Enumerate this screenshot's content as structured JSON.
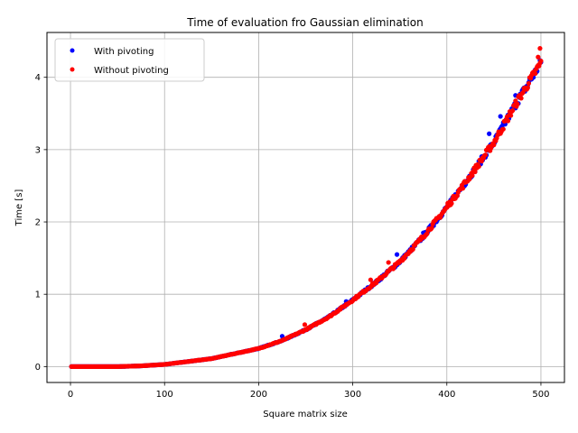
{
  "chart_data": {
    "type": "scatter",
    "title": "Time of evaluation fro Gaussian elimination",
    "xlabel": "Square matrix size",
    "ylabel": "Time [s]",
    "xlim": [
      -25,
      525
    ],
    "ylim": [
      -0.22,
      4.62
    ],
    "x_ticks": [
      0,
      100,
      200,
      300,
      400,
      500
    ],
    "x_tick_labels": [
      "0",
      "100",
      "200",
      "300",
      "400",
      "500"
    ],
    "y_ticks": [
      0,
      1,
      2,
      3,
      4
    ],
    "y_tick_labels": [
      "0",
      "1",
      "2",
      "3",
      "4"
    ],
    "grid": true,
    "legend_position": "top-left",
    "model": {
      "description_hidden": true,
      "a": 3.4e-08
    },
    "series": [
      {
        "name": "With pivoting",
        "color": "#0000ff",
        "x": [
          0,
          25,
          50,
          75,
          100,
          125,
          150,
          175,
          200,
          225,
          250,
          275,
          300,
          325,
          350,
          375,
          400,
          425,
          450,
          475,
          500
        ],
        "y": [
          0.0,
          0.0,
          0.0,
          0.01,
          0.03,
          0.07,
          0.11,
          0.18,
          0.25,
          0.36,
          0.51,
          0.69,
          0.92,
          1.17,
          1.45,
          1.8,
          2.2,
          2.64,
          3.1,
          3.67,
          4.2
        ],
        "outliers": [
          [
            225,
            0.42
          ],
          [
            293,
            0.9
          ],
          [
            347,
            1.55
          ],
          [
            375,
            1.85
          ],
          [
            445,
            3.22
          ],
          [
            457,
            3.46
          ],
          [
            473,
            3.75
          ]
        ]
      },
      {
        "name": "Without pivoting",
        "color": "#ff0000",
        "x": [
          0,
          25,
          50,
          75,
          100,
          125,
          150,
          175,
          200,
          225,
          250,
          275,
          300,
          325,
          350,
          375,
          400,
          425,
          450,
          475,
          500
        ],
        "y": [
          0.0,
          0.0,
          0.0,
          0.01,
          0.03,
          0.07,
          0.11,
          0.18,
          0.25,
          0.36,
          0.51,
          0.69,
          0.92,
          1.17,
          1.45,
          1.8,
          2.2,
          2.64,
          3.1,
          3.67,
          4.2
        ],
        "outliers": [
          [
            249,
            0.58
          ],
          [
            319,
            1.2
          ],
          [
            338,
            1.44
          ],
          [
            401,
            2.26
          ],
          [
            497,
            4.28
          ],
          [
            499,
            4.4
          ]
        ]
      }
    ]
  }
}
